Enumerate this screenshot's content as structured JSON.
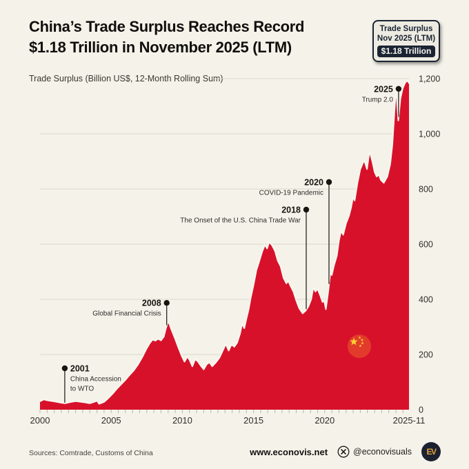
{
  "colors": {
    "page_bg": "#f4f2e9",
    "area_red": "#d8112b",
    "flag_red": "#e23b2b",
    "flag_yellow": "#fcd12f",
    "navy": "#1b2433",
    "gold": "#dfa13f",
    "grid": "#dcd9cd",
    "tick": "#b8b6aa",
    "text_dark": "#16150f",
    "area_edge": "#f8f7ef"
  },
  "header": {
    "title_line1": "China’s Trade Surplus Reaches Record",
    "title_line2": "$1.18 Trillion in November 2025 (LTM)"
  },
  "badge": {
    "line1": "Trade Surplus",
    "line2": "Nov 2025 (LTM)",
    "value": "$1.18 Trillion"
  },
  "chart_data": {
    "type": "area",
    "title": "Trade Surplus (Billion US$, 12-Month Rolling Sum)",
    "unit": "Billion US$",
    "x_axis": {
      "range": [
        2000,
        2025.92
      ],
      "ticks": [
        {
          "value": 2000,
          "label": "2000"
        },
        {
          "value": 2005,
          "label": "2005"
        },
        {
          "value": 2010,
          "label": "2010"
        },
        {
          "value": 2015,
          "label": "2015"
        },
        {
          "value": 2020,
          "label": "2020"
        },
        {
          "value": 2025.92,
          "label": "2025-11"
        }
      ]
    },
    "y_axis": {
      "range": [
        0,
        1200
      ],
      "grid": true,
      "ticks": [
        {
          "value": 0,
          "label": "0"
        },
        {
          "value": 200,
          "label": "200"
        },
        {
          "value": 400,
          "label": "400"
        },
        {
          "value": 600,
          "label": "600"
        },
        {
          "value": 800,
          "label": "800"
        },
        {
          "value": 1000,
          "label": "1,000"
        },
        {
          "value": 1200,
          "label": "1,200"
        }
      ]
    },
    "series": [
      {
        "name": "Trade Surplus (12-Month Rolling Sum)",
        "points": [
          [
            2000.0,
            30
          ],
          [
            2000.25,
            37
          ],
          [
            2000.5,
            34
          ],
          [
            2000.75,
            32
          ],
          [
            2001.0,
            30
          ],
          [
            2001.4,
            26
          ],
          [
            2001.75,
            23
          ],
          [
            2002.1,
            27
          ],
          [
            2002.5,
            31
          ],
          [
            2002.9,
            28
          ],
          [
            2003.2,
            26
          ],
          [
            2003.5,
            23
          ],
          [
            2003.8,
            28
          ],
          [
            2004.0,
            33
          ],
          [
            2004.15,
            21
          ],
          [
            2004.5,
            28
          ],
          [
            2004.8,
            42
          ],
          [
            2005.1,
            58
          ],
          [
            2005.4,
            76
          ],
          [
            2005.7,
            92
          ],
          [
            2006.0,
            108
          ],
          [
            2006.3,
            126
          ],
          [
            2006.6,
            143
          ],
          [
            2006.9,
            165
          ],
          [
            2007.2,
            192
          ],
          [
            2007.45,
            218
          ],
          [
            2007.7,
            240
          ],
          [
            2007.9,
            254
          ],
          [
            2008.1,
            250
          ],
          [
            2008.3,
            257
          ],
          [
            2008.5,
            251
          ],
          [
            2008.7,
            265
          ],
          [
            2008.82,
            290
          ],
          [
            2008.95,
            312
          ],
          [
            2009.05,
            317
          ],
          [
            2009.2,
            294
          ],
          [
            2009.45,
            262
          ],
          [
            2009.7,
            228
          ],
          [
            2009.95,
            195
          ],
          [
            2010.15,
            174
          ],
          [
            2010.35,
            192
          ],
          [
            2010.5,
            181
          ],
          [
            2010.7,
            157
          ],
          [
            2010.9,
            183
          ],
          [
            2011.1,
            174
          ],
          [
            2011.3,
            159
          ],
          [
            2011.5,
            146
          ],
          [
            2011.7,
            164
          ],
          [
            2011.9,
            172
          ],
          [
            2012.1,
            157
          ],
          [
            2012.35,
            171
          ],
          [
            2012.6,
            188
          ],
          [
            2012.85,
            215
          ],
          [
            2013.05,
            238
          ],
          [
            2013.25,
            214
          ],
          [
            2013.45,
            236
          ],
          [
            2013.65,
            228
          ],
          [
            2013.85,
            243
          ],
          [
            2014.05,
            275
          ],
          [
            2014.2,
            312
          ],
          [
            2014.35,
            295
          ],
          [
            2014.5,
            330
          ],
          [
            2014.65,
            362
          ],
          [
            2014.8,
            405
          ],
          [
            2015.0,
            452
          ],
          [
            2015.2,
            505
          ],
          [
            2015.4,
            538
          ],
          [
            2015.6,
            572
          ],
          [
            2015.8,
            598
          ],
          [
            2015.95,
            584
          ],
          [
            2016.1,
            608
          ],
          [
            2016.3,
            596
          ],
          [
            2016.5,
            576
          ],
          [
            2016.7,
            540
          ],
          [
            2016.9,
            520
          ],
          [
            2017.1,
            478
          ],
          [
            2017.3,
            458
          ],
          [
            2017.45,
            466
          ],
          [
            2017.6,
            448
          ],
          [
            2017.8,
            428
          ],
          [
            2018.0,
            396
          ],
          [
            2018.2,
            368
          ],
          [
            2018.45,
            349
          ],
          [
            2018.65,
            358
          ],
          [
            2018.85,
            374
          ],
          [
            2019.05,
            400
          ],
          [
            2019.2,
            443
          ],
          [
            2019.35,
            428
          ],
          [
            2019.5,
            438
          ],
          [
            2019.7,
            412
          ],
          [
            2019.85,
            390
          ],
          [
            2019.95,
            398
          ],
          [
            2020.08,
            364
          ],
          [
            2020.25,
            430
          ],
          [
            2020.4,
            498
          ],
          [
            2020.5,
            488
          ],
          [
            2020.65,
            522
          ],
          [
            2020.85,
            558
          ],
          [
            2021.0,
            612
          ],
          [
            2021.15,
            648
          ],
          [
            2021.3,
            634
          ],
          [
            2021.5,
            676
          ],
          [
            2021.7,
            702
          ],
          [
            2021.85,
            732
          ],
          [
            2022.0,
            772
          ],
          [
            2022.1,
            758
          ],
          [
            2022.3,
            822
          ],
          [
            2022.5,
            872
          ],
          [
            2022.77,
            905
          ],
          [
            2022.97,
            872
          ],
          [
            2023.15,
            938
          ],
          [
            2023.35,
            898
          ],
          [
            2023.5,
            862
          ],
          [
            2023.65,
            845
          ],
          [
            2023.8,
            852
          ],
          [
            2023.95,
            832
          ],
          [
            2024.15,
            822
          ],
          [
            2024.4,
            845
          ],
          [
            2024.6,
            890
          ],
          [
            2024.75,
            960
          ],
          [
            2024.9,
            1080
          ],
          [
            2025.02,
            1168
          ],
          [
            2025.17,
            1048
          ],
          [
            2025.32,
            1128
          ],
          [
            2025.48,
            1165
          ],
          [
            2025.68,
            1188
          ],
          [
            2025.85,
            1192
          ],
          [
            2025.92,
            1182
          ]
        ]
      }
    ],
    "annotations": [
      {
        "year_label": "2001",
        "text": [
          "China Accession",
          "to WTO"
        ],
        "at_year": 2001.74,
        "dot_value": 150,
        "side": "right"
      },
      {
        "year_label": "2008",
        "text": [
          "Global Financial Crisis"
        ],
        "at_year": 2008.9,
        "dot_value": 387,
        "side": "left"
      },
      {
        "year_label": "2018",
        "text": [
          "The Onset of the U.S. China Trade War"
        ],
        "at_year": 2018.7,
        "dot_value": 725,
        "side": "left"
      },
      {
        "year_label": "2020",
        "text": [
          "COVID-19 Pandemic"
        ],
        "at_year": 2020.3,
        "dot_value": 825,
        "side": "left"
      },
      {
        "year_label": "2025",
        "text": [
          "Trump 2.0"
        ],
        "at_year": 2025.19,
        "dot_value": 1163,
        "side": "left"
      }
    ],
    "end_value_label": "$1.18 Trillion",
    "peak_value": 1192,
    "last_value": 1180,
    "legend": "none"
  },
  "footer": {
    "sources": "Sources: Comtrade, Customs of China",
    "website": "www.econovis.net",
    "handle": "@econovisuals",
    "logo_text": "EV"
  }
}
